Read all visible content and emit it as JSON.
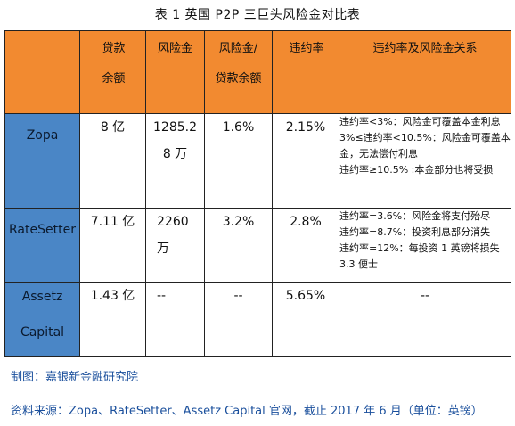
{
  "caption": "表 1 英国 P2P 三巨头风险金对比表",
  "headers": {
    "loan_balance": [
      "贷款",
      "余额"
    ],
    "risk_fund": "风险金",
    "risk_ratio": [
      "风险金/",
      "贷款余额"
    ],
    "default_rate": "违约率",
    "relation": "违约率及风险金关系"
  },
  "rows": [
    {
      "name": "Zopa",
      "loan_balance": "8 亿",
      "risk_fund": [
        "1285.2",
        "8 万"
      ],
      "risk_ratio": "1.6%",
      "default_rate": "2.15%",
      "relation": [
        "违约率<3%：风险金可覆盖本金利息",
        "3%≤违约率<10.5%：风险金可覆盖本金，无法偿付利息",
        "违约率≥10.5% :本金部分也将受损"
      ]
    },
    {
      "name": "RateSetter",
      "loan_balance": "7.11 亿",
      "risk_fund": [
        "2260",
        "万"
      ],
      "risk_ratio": "3.2%",
      "default_rate": "2.8%",
      "relation": [
        "违约率=3.6%：风险金将支付殆尽",
        "违约率=8.7%：投资利息部分消失",
        "违约率=12%：每投资 1 英镑将损失 3.3 便士"
      ]
    },
    {
      "name": [
        "Assetz",
        "Capital"
      ],
      "loan_balance": "1.43 亿",
      "risk_fund": "--",
      "risk_ratio": "--",
      "default_rate": "5.65%",
      "relation": "--"
    }
  ],
  "footer": {
    "made_by": "制图：嘉银新金融研究院",
    "source": "资料来源：Zopa、RateSetter、Assetz Capital 官网，截止 2017 年 6 月（单位：英镑）"
  }
}
